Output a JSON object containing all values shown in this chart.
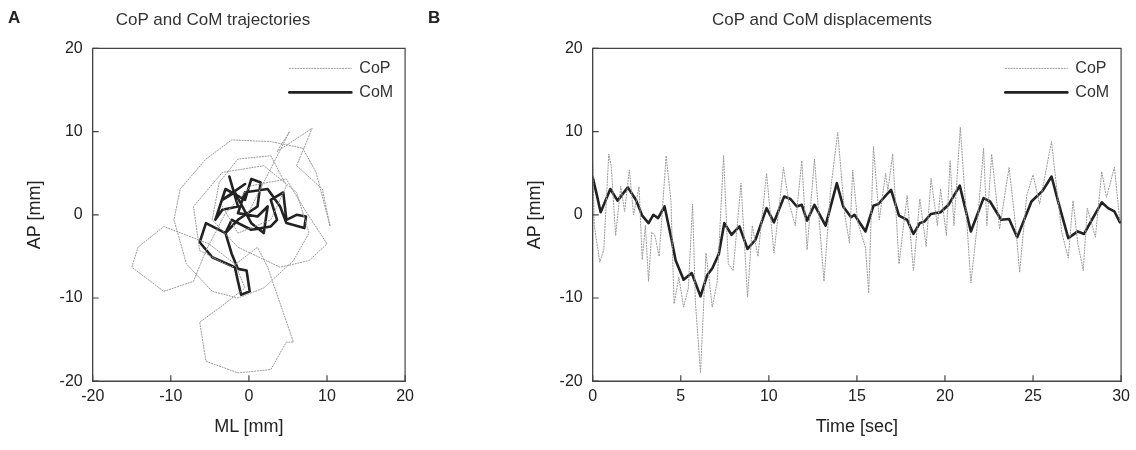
{
  "chart_data": [
    {
      "type": "line",
      "title": "CoP and CoM trajectories",
      "xlabel": "ML [mm]",
      "ylabel": "AP [mm]",
      "annotations": [
        "A"
      ],
      "xlim": [
        -20,
        20
      ],
      "xticks": [
        -20,
        -10,
        0,
        10,
        20
      ],
      "ylim": [
        -20,
        20
      ],
      "yticks": [
        -20,
        -10,
        0,
        10,
        20
      ],
      "legend": "top right",
      "series": [
        {
          "name": "CoP",
          "color": "#9a9a9a",
          "line_style": "dotted",
          "x": [
            -0.1,
            5.2,
            3.6,
            8.1,
            6.1,
            9.4,
            10.4,
            8.6,
            6.9,
            2.8,
            -2.2,
            -5.5,
            -8.8,
            -9.6,
            -8.0,
            -4.7,
            -1.4,
            1.9,
            5.7,
            7.7,
            6.1,
            1.9,
            -3.4,
            -7.1,
            -6.3,
            -2.2,
            1.1,
            2.4,
            5.7,
            4.8,
            2.8,
            -1.4,
            -5.5,
            -6.3,
            -3.8,
            -0.5,
            -1.8,
            -5.1,
            -10.9,
            -14.2,
            -15.0,
            -10.9,
            -7.1,
            -5.5,
            -3.0,
            0.3,
            4.8,
            6.9,
            10.0,
            7.7,
            4.0,
            -1.4,
            -4.7,
            -3.8,
            -1.4,
            2.8,
            4.8,
            2.8,
            -1.4,
            -3.4
          ],
          "values": [
            0.2,
            10.0,
            7.6,
            10.4,
            5.9,
            3.1,
            -1.4,
            5.1,
            8.0,
            8.8,
            9.0,
            6.7,
            3.1,
            -0.6,
            -5.9,
            -9.2,
            -10.0,
            -8.8,
            -5.5,
            -2.2,
            2.7,
            5.9,
            5.1,
            1.0,
            -4.3,
            -6.3,
            -3.9,
            -6.3,
            -15.3,
            -15.3,
            -18.6,
            -19.0,
            -17.6,
            -12.9,
            -11.2,
            -8.8,
            -5.9,
            -3.5,
            -1.4,
            -3.9,
            -6.3,
            -9.2,
            -8.0,
            -4.3,
            0.2,
            3.5,
            4.3,
            1.0,
            -3.5,
            -5.5,
            -6.3,
            -3.9,
            -0.6,
            3.9,
            6.7,
            7.1,
            3.5,
            -0.6,
            -2.2,
            1.0
          ]
        },
        {
          "name": "CoM",
          "color": "#222222",
          "line_style": "solid",
          "x": [
            -2.5,
            -1.4,
            -3.4,
            -4.3,
            -3.0,
            -0.5,
            0.3,
            1.5,
            1.1,
            -1.4,
            -3.0,
            -5.5,
            -6.3,
            -4.7,
            -1.8,
            -1.4,
            -1.0,
            0.1,
            -0.3,
            -1.4,
            -2.2,
            -3.0,
            -2.2,
            0.3,
            2.8,
            3.6,
            2.8,
            4.4,
            4.8,
            6.1,
            7.3,
            7.1,
            4.8,
            4.0,
            2.4,
            -0.5,
            -1.4,
            1.1,
            2.4,
            1.9,
            0.3,
            -1.8,
            -3.4,
            -0.5
          ],
          "values": [
            4.6,
            1.0,
            0.6,
            -0.6,
            3.1,
            1.8,
            4.3,
            3.9,
            1.0,
            -0.6,
            -2.2,
            -1.0,
            -3.3,
            -5.1,
            -6.3,
            -8.0,
            -9.6,
            -9.2,
            -6.7,
            -6.5,
            -4.7,
            -2.2,
            -0.6,
            -1.8,
            -1.4,
            -0.6,
            1.8,
            2.7,
            -0.6,
            0.0,
            -0.2,
            -1.6,
            -1.0,
            1.0,
            3.1,
            2.7,
            0.2,
            -0.2,
            1.0,
            -2.2,
            -1.0,
            2.7,
            1.8,
            3.7
          ]
        }
      ]
    },
    {
      "type": "line",
      "title": "CoP and CoM displacements",
      "xlabel": "Time [sec]",
      "ylabel": "AP [mm]",
      "annotations": [
        "B"
      ],
      "xlim": [
        0,
        30
      ],
      "xticks": [
        0,
        5,
        10,
        15,
        20,
        25,
        30
      ],
      "ylim": [
        -20,
        20
      ],
      "yticks": [
        -20,
        -10,
        0,
        10,
        20
      ],
      "legend": "top right",
      "series": [
        {
          "name": "CoP",
          "color": "#9a9a9a",
          "line_style": "dotted",
          "x": [
            0,
            0.09,
            0.4,
            0.63,
            0.91,
            1.05,
            1.3,
            1.59,
            1.81,
            2.08,
            2.32,
            2.63,
            2.81,
            2.99,
            3.17,
            3.35,
            3.53,
            3.77,
            4.17,
            4.44,
            4.62,
            4.89,
            5.16,
            5.43,
            5.67,
            5.83,
            6.12,
            6.43,
            6.79,
            7.07,
            7.43,
            7.7,
            7.97,
            8.42,
            8.79,
            9.06,
            9.38,
            9.87,
            10.29,
            10.83,
            11.14,
            11.5,
            11.87,
            12.17,
            12.59,
            13.13,
            13.5,
            13.91,
            14.31,
            14.58,
            14.76,
            15.04,
            15.49,
            15.67,
            15.94,
            16.27,
            16.63,
            16.76,
            17.03,
            17.39,
            17.85,
            18.21,
            18.57,
            18.93,
            19.21,
            19.57,
            19.75,
            20.08,
            20.29,
            20.51,
            20.87,
            21.2,
            21.47,
            21.83,
            22.19,
            22.38,
            22.65,
            23.1,
            23.64,
            24.01,
            24.24,
            24.64,
            25.0,
            25.37,
            26.05,
            26.36,
            26.63,
            27.0,
            27.27,
            27.54,
            27.85,
            28.08,
            28.54,
            28.9,
            29.17,
            29.62,
            29.93
          ],
          "values": [
            6.5,
            -1.3,
            -5.7,
            -4.2,
            7.3,
            5.9,
            -2.5,
            3.4,
            0.4,
            5.4,
            0.0,
            3.4,
            -5.4,
            -1.3,
            -8.0,
            -2.1,
            -2.5,
            -5.0,
            7.1,
            1.7,
            -10.7,
            -7.5,
            -11.1,
            -8.8,
            1.3,
            -10.5,
            -19.0,
            -4.6,
            -11.1,
            -8.0,
            7.1,
            -5.9,
            -6.7,
            3.8,
            -9.9,
            -1.3,
            -5.0,
            5.0,
            -4.6,
            5.7,
            1.5,
            -1.3,
            6.5,
            -4.2,
            6.7,
            -8.0,
            2.9,
            9.9,
            0.0,
            -3.4,
            5.4,
            -0.8,
            -4.0,
            -9.4,
            8.2,
            -0.6,
            5.0,
            2.9,
            7.3,
            -5.9,
            2.3,
            -6.7,
            1.9,
            -3.8,
            4.4,
            -1.3,
            3.1,
            -2.5,
            6.5,
            -1.3,
            10.5,
            0.4,
            -8.2,
            -1.3,
            8.0,
            -1.3,
            7.3,
            -1.7,
            5.7,
            -1.3,
            -6.9,
            2.3,
            4.8,
            1.3,
            8.8,
            2.9,
            -2.1,
            -5.2,
            1.7,
            -3.4,
            -6.7,
            0.8,
            -2.7,
            5.2,
            2.1,
            5.7,
            -0.8
          ]
        },
        {
          "name": "CoM",
          "color": "#222222",
          "line_style": "solid",
          "x": [
            0,
            0.2,
            0.45,
            1.0,
            1.41,
            1.99,
            2.45,
            2.81,
            3.17,
            3.44,
            3.71,
            4.08,
            4.44,
            4.71,
            5.16,
            5.62,
            6.12,
            6.49,
            6.8,
            7.16,
            7.47,
            7.88,
            8.33,
            8.79,
            9.24,
            9.87,
            10.29,
            10.87,
            11.23,
            11.59,
            11.87,
            12.17,
            12.59,
            13.22,
            13.86,
            14.22,
            14.67,
            14.86,
            15.49,
            15.94,
            16.22,
            16.67,
            16.94,
            17.39,
            17.85,
            18.21,
            18.57,
            18.84,
            19.2,
            19.75,
            20.2,
            20.84,
            21.47,
            22.19,
            22.56,
            23.19,
            23.64,
            24.1,
            24.91,
            25.55,
            26.05,
            26.45,
            27.0,
            27.54,
            27.9,
            28.26,
            28.9,
            29.26,
            29.62,
            29.93
          ],
          "values": [
            4.5,
            2.7,
            0.3,
            3.1,
            1.7,
            3.3,
            1.8,
            -0.1,
            -1.0,
            0.0,
            -0.4,
            1.0,
            -2.6,
            -5.5,
            -7.8,
            -7.0,
            -9.8,
            -7.3,
            -6.4,
            -4.7,
            -1.0,
            -2.4,
            -1.4,
            -4.1,
            -3.0,
            0.8,
            -0.9,
            2.2,
            1.9,
            1.0,
            1.2,
            -0.7,
            1.2,
            -1.3,
            3.8,
            1.0,
            -0.3,
            0.0,
            -2.0,
            1.1,
            1.3,
            2.4,
            3.0,
            -0.1,
            -0.6,
            -2.3,
            -1.0,
            -0.8,
            0.1,
            0.3,
            1.2,
            3.5,
            -2.0,
            2.0,
            1.6,
            -0.6,
            -0.5,
            -2.7,
            1.6,
            2.9,
            4.6,
            1.4,
            -2.8,
            -2.0,
            -2.3,
            -0.9,
            1.5,
            0.8,
            0.4,
            -0.9
          ]
        }
      ]
    }
  ]
}
